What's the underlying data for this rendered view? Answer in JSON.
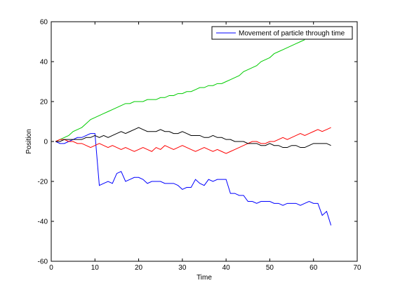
{
  "chart_data": {
    "type": "line",
    "title": "",
    "xlabel": "Time",
    "ylabel": "Position",
    "xlim": [
      0,
      70
    ],
    "ylim": [
      -60,
      60
    ],
    "xticks": [
      0,
      10,
      20,
      30,
      40,
      50,
      60,
      70
    ],
    "yticks": [
      -60,
      -40,
      -20,
      0,
      20,
      40,
      60
    ],
    "grid": false,
    "legend": {
      "position": "top-right",
      "entries": [
        "Movement of particle through time"
      ]
    },
    "series": [
      {
        "name": "Movement of particle through time",
        "color": "#0000ff",
        "x": [
          1,
          2,
          3,
          4,
          5,
          6,
          7,
          8,
          9,
          10,
          11,
          12,
          13,
          14,
          15,
          16,
          17,
          18,
          19,
          20,
          21,
          22,
          23,
          24,
          25,
          26,
          27,
          28,
          29,
          30,
          31,
          32,
          33,
          34,
          35,
          36,
          37,
          38,
          39,
          40,
          41,
          42,
          43,
          44,
          45,
          46,
          47,
          48,
          49,
          50,
          51,
          52,
          53,
          54,
          55,
          56,
          57,
          58,
          59,
          60,
          61,
          62,
          63,
          64
        ],
        "values": [
          0,
          -1,
          -1,
          0,
          1,
          2,
          2,
          3,
          4,
          4,
          -22,
          -21,
          -20,
          -21,
          -16,
          -15,
          -20,
          -19,
          -18,
          -18,
          -19,
          -21,
          -20,
          -20,
          -20,
          -21,
          -21,
          -21,
          -22,
          -24,
          -23,
          -23,
          -19,
          -21,
          -22,
          -19,
          -20,
          -19,
          -19,
          -19,
          -26,
          -26,
          -27,
          -27,
          -30,
          -30,
          -31,
          -30,
          -30,
          -30,
          -31,
          -31,
          -32,
          -31,
          -31,
          -31,
          -32,
          -31,
          -30,
          -31,
          -31,
          -37,
          -35,
          -42
        ]
      },
      {
        "name": "",
        "color": "#00cc00",
        "x": [
          1,
          2,
          3,
          4,
          5,
          6,
          7,
          8,
          9,
          10,
          11,
          12,
          13,
          14,
          15,
          16,
          17,
          18,
          19,
          20,
          21,
          22,
          23,
          24,
          25,
          26,
          27,
          28,
          29,
          30,
          31,
          32,
          33,
          34,
          35,
          36,
          37,
          38,
          39,
          40,
          41,
          42,
          43,
          44,
          45,
          46,
          47,
          48,
          49,
          50,
          51,
          52,
          53,
          54,
          55,
          56,
          57,
          58
        ],
        "values": [
          0,
          1,
          2,
          3,
          5,
          6,
          7,
          9,
          11,
          12,
          13,
          14,
          15,
          16,
          17,
          18,
          19,
          19,
          20,
          20,
          20,
          21,
          21,
          21,
          22,
          22,
          23,
          23,
          24,
          24,
          25,
          25,
          26,
          27,
          27,
          28,
          28,
          29,
          29,
          30,
          31,
          32,
          33,
          35,
          36,
          37,
          38,
          40,
          41,
          42,
          44,
          45,
          46,
          47,
          48,
          49,
          50,
          51
        ]
      },
      {
        "name": "",
        "color": "#ff0000",
        "x": [
          1,
          2,
          3,
          4,
          5,
          6,
          7,
          8,
          9,
          10,
          11,
          12,
          13,
          14,
          15,
          16,
          17,
          18,
          19,
          20,
          21,
          22,
          23,
          24,
          25,
          26,
          27,
          28,
          29,
          30,
          31,
          32,
          33,
          34,
          35,
          36,
          37,
          38,
          39,
          40,
          41,
          42,
          43,
          44,
          45,
          46,
          47,
          48,
          49,
          50,
          51,
          52,
          53,
          54,
          55,
          56,
          57,
          58,
          59,
          60,
          61,
          62,
          63,
          64
        ],
        "values": [
          0,
          1,
          1,
          0,
          0,
          -1,
          -1,
          -2,
          -3,
          -2,
          -1,
          -2,
          -3,
          -2,
          -3,
          -4,
          -3,
          -4,
          -5,
          -4,
          -3,
          -4,
          -5,
          -3,
          -4,
          -2,
          -3,
          -4,
          -3,
          -2,
          -3,
          -4,
          -5,
          -4,
          -3,
          -4,
          -5,
          -4,
          -5,
          -6,
          -5,
          -4,
          -3,
          -2,
          -1,
          0,
          0,
          -1,
          -1,
          0,
          0,
          1,
          2,
          1,
          2,
          3,
          4,
          3,
          4,
          5,
          6,
          5,
          6,
          7
        ]
      },
      {
        "name": "",
        "color": "#000000",
        "x": [
          1,
          2,
          3,
          4,
          5,
          6,
          7,
          8,
          9,
          10,
          11,
          12,
          13,
          14,
          15,
          16,
          17,
          18,
          19,
          20,
          21,
          22,
          23,
          24,
          25,
          26,
          27,
          28,
          29,
          30,
          31,
          32,
          33,
          34,
          35,
          36,
          37,
          38,
          39,
          40,
          41,
          42,
          43,
          44,
          45,
          46,
          47,
          48,
          49,
          50,
          51,
          52,
          53,
          54,
          55,
          56,
          57,
          58,
          59,
          60,
          61,
          62,
          63,
          64
        ],
        "values": [
          0,
          0,
          1,
          1,
          1,
          1,
          1,
          2,
          2,
          3,
          2,
          3,
          2,
          3,
          4,
          5,
          4,
          5,
          6,
          7,
          6,
          5,
          5,
          5,
          6,
          5,
          5,
          4,
          4,
          5,
          4,
          3,
          3,
          3,
          2,
          2,
          3,
          2,
          2,
          1,
          1,
          0,
          0,
          0,
          -1,
          -1,
          -1,
          -2,
          -2,
          -1,
          -2,
          -2,
          -3,
          -3,
          -2,
          -2,
          -3,
          -3,
          -2,
          -1,
          -1,
          -1,
          -1,
          -2
        ]
      }
    ]
  }
}
